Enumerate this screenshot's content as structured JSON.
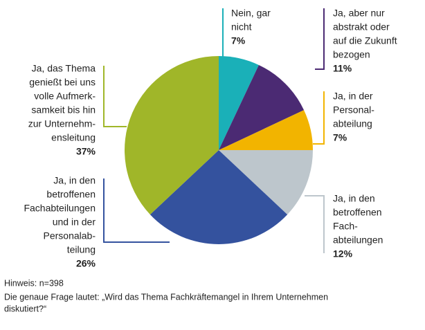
{
  "chart_data": {
    "type": "pie",
    "categories": [
      [
        "Nein, gar",
        "nicht"
      ],
      [
        "Ja, aber nur",
        "abstrakt oder",
        "auf die Zukunft",
        "bezogen"
      ],
      [
        "Ja, in der",
        "Personal-",
        "abteilung"
      ],
      [
        "Ja, in den",
        "betroffenen",
        "Fach-",
        "abteilungen"
      ],
      [
        "Ja, in den",
        "betroffenen",
        "Fachabteilungen",
        "und in der",
        "Personalab-",
        "teilung"
      ],
      [
        "Ja, das Thema",
        "genießt bei uns",
        "volle Aufmerk-",
        "samkeit bis hin",
        "zur Unternehm-",
        "ensleitung"
      ]
    ],
    "values": [
      7,
      11,
      7,
      12,
      26,
      37
    ],
    "value_labels": [
      "7%",
      "11%",
      "7%",
      "12%",
      "26%",
      "37%"
    ],
    "colors": [
      "#1ab0b8",
      "#4b2a73",
      "#f2b400",
      "#bdc6cc",
      "#34529e",
      "#a0b629"
    ],
    "notes": [
      "Hinweis: n=398",
      "Die genaue Frage lautet: „Wird das Thema Fachkräftemangel in Ihrem Unternehmen",
      "diskutiert?“"
    ]
  }
}
